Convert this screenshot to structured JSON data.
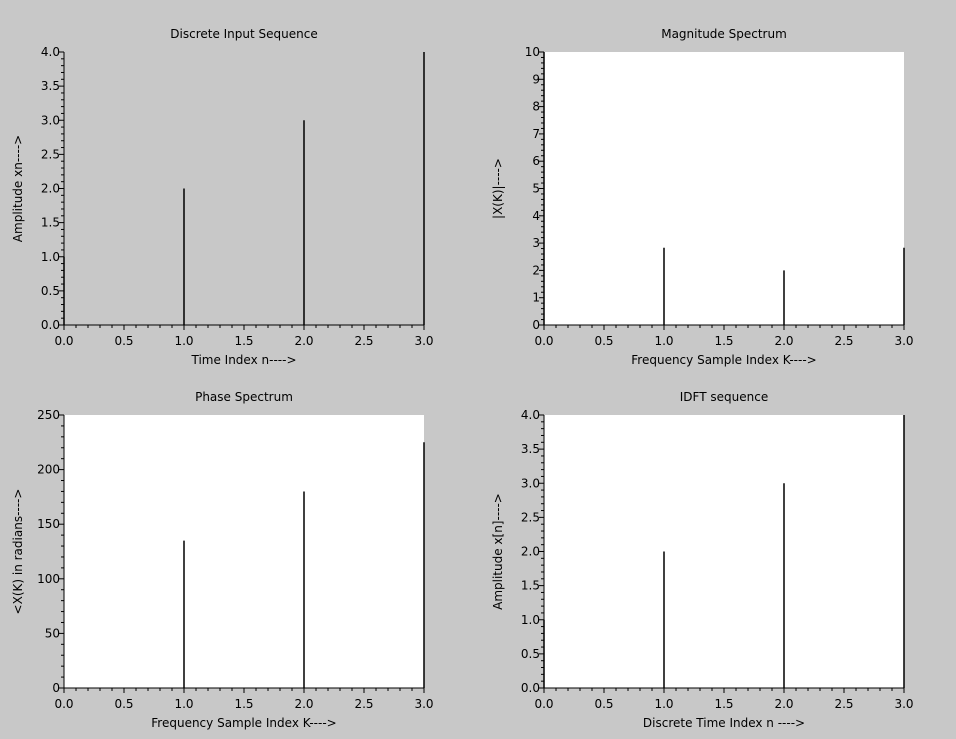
{
  "chart_data": [
    {
      "type": "stem",
      "title": "Discrete Input Sequence",
      "xlabel": "Time Index n---->",
      "ylabel": "Amplitude xn---->",
      "xlim": [
        0,
        3
      ],
      "ylim": [
        0,
        4
      ],
      "x": [
        0,
        1,
        2,
        3
      ],
      "values": [
        1,
        2,
        3,
        4
      ],
      "xticks": [
        "0.0",
        "0.5",
        "1.0",
        "1.5",
        "2.0",
        "2.5",
        "3.0"
      ],
      "yticks": [
        "0.0",
        "0.5",
        "1.0",
        "1.5",
        "2.0",
        "2.5",
        "3.0",
        "3.5",
        "4.0"
      ],
      "plot_background": "#c8c8c8",
      "grid": false
    },
    {
      "type": "stem",
      "title": "Magnitude Spectrum",
      "xlabel": "Frequency Sample Index K---->",
      "ylabel": "|X(K)|---->",
      "xlim": [
        0,
        3
      ],
      "ylim": [
        0,
        10
      ],
      "x": [
        0,
        1,
        2,
        3
      ],
      "values": [
        10,
        2.83,
        2,
        2.83
      ],
      "xticks": [
        "0.0",
        "0.5",
        "1.0",
        "1.5",
        "2.0",
        "2.5",
        "3.0"
      ],
      "yticks": [
        "0",
        "1",
        "2",
        "3",
        "4",
        "5",
        "6",
        "7",
        "8",
        "9",
        "10"
      ],
      "plot_background": "#ffffff",
      "grid": false
    },
    {
      "type": "stem",
      "title": "Phase Spectrum",
      "xlabel": "Frequency Sample Index K---->",
      "ylabel": "<X(K) in radians---->",
      "xlim": [
        0,
        3
      ],
      "ylim": [
        0,
        250
      ],
      "x": [
        0,
        1,
        2,
        3
      ],
      "values": [
        0,
        135,
        180,
        225
      ],
      "xticks": [
        "0.0",
        "0.5",
        "1.0",
        "1.5",
        "2.0",
        "2.5",
        "3.0"
      ],
      "yticks": [
        "0",
        "50",
        "100",
        "150",
        "200",
        "250"
      ],
      "plot_background": "#ffffff",
      "grid": false
    },
    {
      "type": "stem",
      "title": "IDFT sequence",
      "xlabel": "Discrete Time Index n ---->",
      "ylabel": "Amplitude x[n]---->",
      "xlim": [
        0,
        3
      ],
      "ylim": [
        0,
        4
      ],
      "x": [
        0,
        1,
        2,
        3
      ],
      "values": [
        1,
        2,
        3,
        4
      ],
      "xticks": [
        "0.0",
        "0.5",
        "1.0",
        "1.5",
        "2.0",
        "2.5",
        "3.0"
      ],
      "yticks": [
        "0.0",
        "0.5",
        "1.0",
        "1.5",
        "2.0",
        "2.5",
        "3.0",
        "3.5",
        "4.0"
      ],
      "plot_background": "#ffffff",
      "grid": false
    }
  ],
  "colors": {
    "figure_background": "#c8c8c8",
    "stem": "#000000",
    "axis": "#000000"
  }
}
